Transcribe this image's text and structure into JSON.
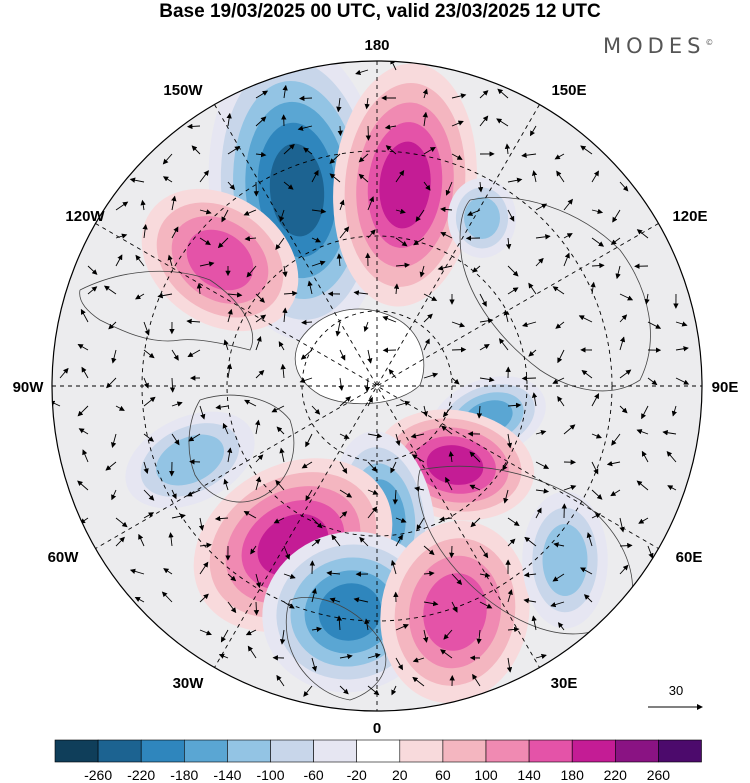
{
  "title": "Base 19/03/2025 00 UTC, valid 23/03/2025 12 UTC",
  "brand": "MODES",
  "brand_mark": "©",
  "longitude_labels": {
    "top": "180",
    "bottom": "0",
    "left": "90W",
    "right": "90E",
    "nw_upper": "150W",
    "nw_lower": "120W",
    "ne_upper": "150E",
    "ne_lower": "120E",
    "sw_upper": "60W",
    "sw_lower": "30W",
    "se_upper": "60E",
    "se_lower": "30E"
  },
  "vector_reference": "30",
  "colorbar": {
    "labels": [
      "-260",
      "-220",
      "-180",
      "-140",
      "-100",
      "-60",
      "-20",
      "20",
      "60",
      "100",
      "140",
      "180",
      "220",
      "260"
    ],
    "colors": [
      "#0f3e5a",
      "#1c6391",
      "#2f86bd",
      "#5aa6d3",
      "#93c4e4",
      "#c8d6ea",
      "#e6e6f2",
      "#ffffff",
      "#f8dadc",
      "#f4b6c0",
      "#f08ab2",
      "#e453a8",
      "#c41c95",
      "#8a1383",
      "#4c0a6c"
    ]
  },
  "anomaly_centers": [
    {
      "lon_label": "160W",
      "sign": "negative",
      "strength": 220
    },
    {
      "lon_label": "170E",
      "sign": "positive",
      "strength": 200
    },
    {
      "lon_label": "125W",
      "sign": "positive",
      "strength": 160
    },
    {
      "lon_label": "140E",
      "sign": "negative",
      "strength": 100
    },
    {
      "lon_label": "75E",
      "sign": "negative",
      "strength": 140
    },
    {
      "lon_label": "50E",
      "sign": "positive",
      "strength": 180
    },
    {
      "lon_label": "10W",
      "sign": "negative",
      "strength": 140
    },
    {
      "lon_label": "45W",
      "sign": "positive",
      "strength": 180
    },
    {
      "lon_label": "25W",
      "sign": "negative",
      "strength": 200
    },
    {
      "lon_label": "20E",
      "sign": "positive",
      "strength": 160
    },
    {
      "lon_label": "45E",
      "sign": "negative",
      "strength": 120
    },
    {
      "lon_label": "70W",
      "sign": "negative",
      "strength": 100
    }
  ]
}
